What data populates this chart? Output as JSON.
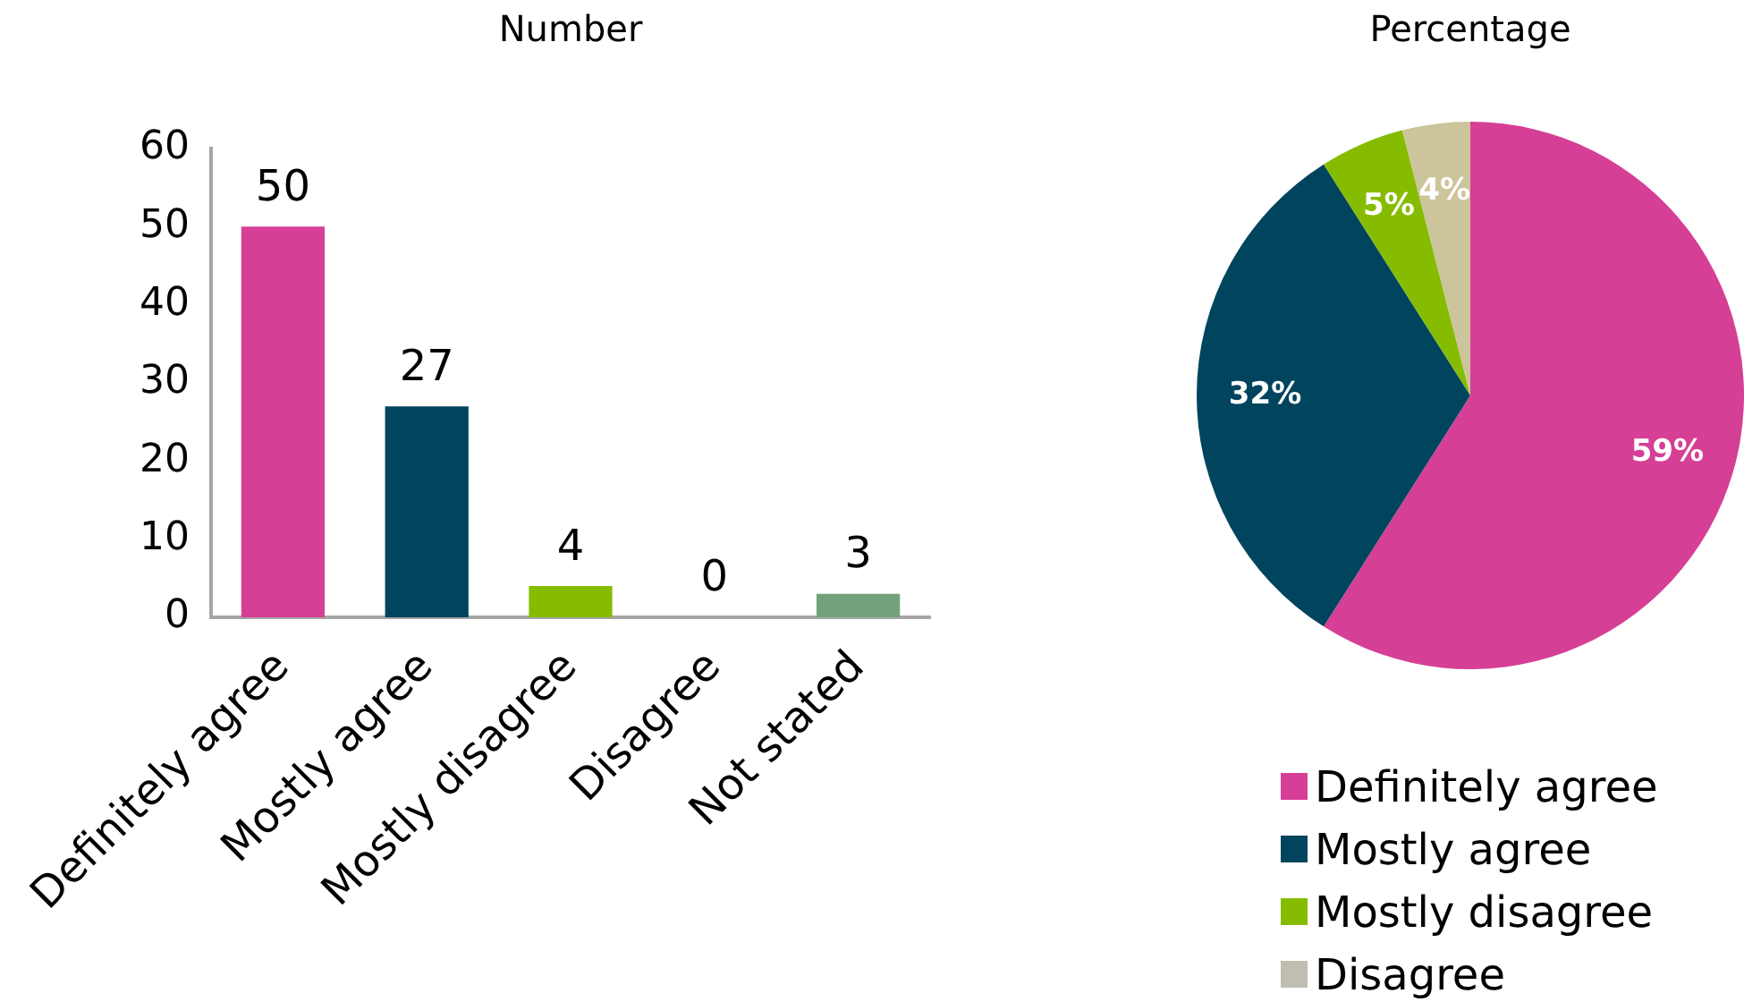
{
  "chart_data": [
    {
      "type": "bar",
      "title": "Number",
      "categories": [
        "Definitely agree",
        "Mostly agree",
        "Mostly disagree",
        "Disagree",
        "Not stated"
      ],
      "values": [
        50,
        27,
        4,
        0,
        3
      ],
      "colors": [
        "#d63f96",
        "#00445e",
        "#86bc00",
        "#c0beb0",
        "#72a27a"
      ],
      "ylim": [
        0,
        60
      ],
      "yticks": [
        0,
        10,
        20,
        30,
        40,
        50,
        60
      ],
      "data_labels": true
    },
    {
      "type": "pie",
      "title": "Percentage",
      "categories": [
        "Definitely agree",
        "Mostly agree",
        "Mostly disagree",
        "Disagree",
        null
      ],
      "values": [
        59,
        32,
        5,
        0,
        4
      ],
      "colors": [
        "#d63f96",
        "#00445e",
        "#86bc00",
        "#c0beb0",
        "#ccc49a"
      ],
      "value_labels": [
        "59%",
        "32%",
        "5%",
        null,
        "4%"
      ],
      "legend": "bottom"
    }
  ]
}
